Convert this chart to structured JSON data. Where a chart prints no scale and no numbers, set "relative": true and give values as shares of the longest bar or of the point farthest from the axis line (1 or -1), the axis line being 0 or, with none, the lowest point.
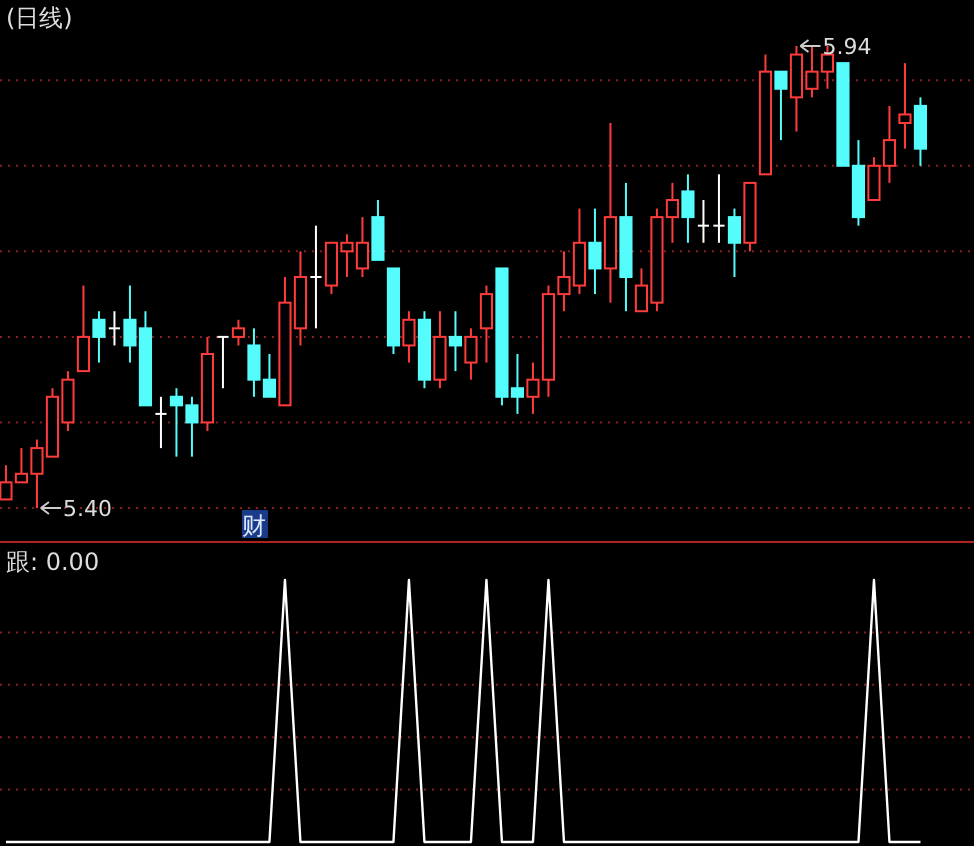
{
  "chart_data": [
    {
      "type": "candlestick",
      "title": "(日线)",
      "categories": [
        null,
        null,
        null,
        null,
        null,
        null,
        null,
        null,
        null,
        null,
        null,
        null,
        null,
        null,
        null,
        null,
        null,
        null,
        null,
        null,
        null,
        null,
        null,
        null,
        null,
        null,
        null,
        null,
        null,
        null,
        null,
        null,
        null,
        null,
        null,
        null,
        null,
        null,
        null,
        null,
        null,
        null,
        null,
        null,
        null,
        null,
        null,
        null,
        null,
        null,
        null,
        null,
        null,
        null,
        null,
        null,
        null,
        null,
        null,
        null
      ],
      "ohlc": [
        [
          5.41,
          5.45,
          5.41,
          5.43
        ],
        [
          5.43,
          5.47,
          5.43,
          5.44
        ],
        [
          5.44,
          5.48,
          5.4,
          5.47
        ],
        [
          5.46,
          5.54,
          5.46,
          5.53
        ],
        [
          5.5,
          5.56,
          5.49,
          5.55
        ],
        [
          5.56,
          5.66,
          5.56,
          5.6
        ],
        [
          5.62,
          5.63,
          5.57,
          5.6
        ],
        [
          5.61,
          5.63,
          5.59,
          5.61
        ],
        [
          5.62,
          5.66,
          5.57,
          5.59
        ],
        [
          5.61,
          5.63,
          5.52,
          5.52
        ],
        [
          5.51,
          5.53,
          5.47,
          5.51
        ],
        [
          5.53,
          5.54,
          5.46,
          5.52
        ],
        [
          5.52,
          5.53,
          5.46,
          5.5
        ],
        [
          5.5,
          5.6,
          5.49,
          5.58
        ],
        [
          5.6,
          5.6,
          5.54,
          5.6
        ],
        [
          5.6,
          5.62,
          5.59,
          5.61
        ],
        [
          5.59,
          5.61,
          5.53,
          5.55
        ],
        [
          5.55,
          5.58,
          5.53,
          5.53
        ],
        [
          5.52,
          5.67,
          5.52,
          5.64
        ],
        [
          5.61,
          5.7,
          5.59,
          5.67
        ],
        [
          5.67,
          5.73,
          5.61,
          5.67
        ],
        [
          5.66,
          5.71,
          5.65,
          5.71
        ],
        [
          5.7,
          5.72,
          5.67,
          5.71
        ],
        [
          5.68,
          5.74,
          5.67,
          5.71
        ],
        [
          5.74,
          5.76,
          5.69,
          5.69
        ],
        [
          5.68,
          5.68,
          5.58,
          5.59
        ],
        [
          5.59,
          5.63,
          5.57,
          5.62
        ],
        [
          5.62,
          5.63,
          5.54,
          5.55
        ],
        [
          5.55,
          5.63,
          5.54,
          5.6
        ],
        [
          5.6,
          5.63,
          5.56,
          5.59
        ],
        [
          5.57,
          5.61,
          5.55,
          5.6
        ],
        [
          5.61,
          5.66,
          5.57,
          5.65
        ],
        [
          5.68,
          5.68,
          5.52,
          5.53
        ],
        [
          5.54,
          5.58,
          5.51,
          5.53
        ],
        [
          5.53,
          5.57,
          5.51,
          5.55
        ],
        [
          5.55,
          5.66,
          5.53,
          5.65
        ],
        [
          5.65,
          5.7,
          5.63,
          5.67
        ],
        [
          5.66,
          5.75,
          5.65,
          5.71
        ],
        [
          5.71,
          5.75,
          5.65,
          5.68
        ],
        [
          5.68,
          5.85,
          5.64,
          5.74
        ],
        [
          5.74,
          5.78,
          5.63,
          5.67
        ],
        [
          5.63,
          5.68,
          5.63,
          5.66
        ],
        [
          5.64,
          5.75,
          5.63,
          5.74
        ],
        [
          5.74,
          5.78,
          5.71,
          5.76
        ],
        [
          5.77,
          5.79,
          5.71,
          5.74
        ],
        [
          5.73,
          5.76,
          5.71,
          5.73
        ],
        [
          5.73,
          5.79,
          5.71,
          5.73
        ],
        [
          5.74,
          5.75,
          5.67,
          5.71
        ],
        [
          5.71,
          5.78,
          5.7,
          5.78
        ],
        [
          5.79,
          5.93,
          5.79,
          5.91
        ],
        [
          5.91,
          5.91,
          5.83,
          5.89
        ],
        [
          5.88,
          5.94,
          5.84,
          5.93
        ],
        [
          5.89,
          5.94,
          5.88,
          5.91
        ],
        [
          5.91,
          5.94,
          5.89,
          5.93
        ],
        [
          5.92,
          5.92,
          5.8,
          5.8
        ],
        [
          5.8,
          5.83,
          5.73,
          5.74
        ],
        [
          5.76,
          5.81,
          5.76,
          5.8
        ],
        [
          5.8,
          5.87,
          5.78,
          5.83
        ],
        [
          5.85,
          5.92,
          5.82,
          5.86
        ],
        [
          5.87,
          5.88,
          5.8,
          5.82
        ]
      ],
      "colors": [
        "#ff3c3c",
        "#ff3c3c",
        "#ff3c3c",
        "#ff3c3c",
        "#ff3c3c",
        "#ff3c3c",
        "#54fcfc",
        "#ffffff",
        "#54fcfc",
        "#54fcfc",
        "#ffffff",
        "#54fcfc",
        "#54fcfc",
        "#ff3c3c",
        "#ffffff",
        "#ff3c3c",
        "#54fcfc",
        "#54fcfc",
        "#ff3c3c",
        "#ff3c3c",
        "#ffffff",
        "#ff3c3c",
        "#ff3c3c",
        "#ff3c3c",
        "#54fcfc",
        "#54fcfc",
        "#ff3c3c",
        "#54fcfc",
        "#ff3c3c",
        "#54fcfc",
        "#ff3c3c",
        "#ff3c3c",
        "#54fcfc",
        "#54fcfc",
        "#ff3c3c",
        "#ff3c3c",
        "#ff3c3c",
        "#ff3c3c",
        "#54fcfc",
        "#ff3c3c",
        "#54fcfc",
        "#ff3c3c",
        "#ff3c3c",
        "#ff3c3c",
        "#54fcfc",
        "#ffffff",
        "#ffffff",
        "#54fcfc",
        "#ff3c3c",
        "#ff3c3c",
        "#54fcfc",
        "#ff3c3c",
        "#ff3c3c",
        "#ff3c3c",
        "#54fcfc",
        "#54fcfc",
        "#ff3c3c",
        "#ff3c3c",
        "#ff3c3c",
        "#54fcfc"
      ],
      "yticks": [
        {
          "value": 5.4,
          "label": null
        },
        {
          "value": 5.5,
          "label": null
        },
        {
          "value": 5.6,
          "label": null
        },
        {
          "value": 5.7,
          "label": null
        },
        {
          "value": 5.8,
          "label": null
        },
        {
          "value": 5.9,
          "label": null
        }
      ],
      "grid": "y",
      "annotations": [
        "5.40",
        "5.94",
        "财"
      ]
    },
    {
      "type": "line",
      "title": "跟: 0.00",
      "relative": true,
      "color": "#ffffff",
      "ref_lines": [
        {
          "axis": "y",
          "value": 0.2,
          "color": "#8a1e1e",
          "line_style": "dotted"
        },
        {
          "axis": "y",
          "value": 0.4,
          "color": "#8a1e1e",
          "line_style": "dotted"
        },
        {
          "axis": "y",
          "value": 0.6,
          "color": "#8a1e1e",
          "line_style": "dotted"
        },
        {
          "axis": "y",
          "value": 0.8,
          "color": "#8a1e1e",
          "line_style": "dotted"
        }
      ],
      "categories": [
        null,
        null,
        null,
        null,
        null,
        null,
        null,
        null,
        null,
        null,
        null,
        null,
        null,
        null,
        null,
        null,
        null,
        null,
        null,
        null,
        null,
        null,
        null,
        null,
        null,
        null,
        null,
        null,
        null,
        null,
        null,
        null,
        null,
        null,
        null,
        null,
        null,
        null,
        null,
        null,
        null,
        null,
        null,
        null,
        null,
        null,
        null,
        null,
        null,
        null,
        null,
        null,
        null,
        null,
        null,
        null,
        null,
        null,
        null,
        null
      ],
      "values": [
        0,
        0,
        0,
        0,
        0,
        0,
        0,
        0,
        0,
        0,
        0,
        0,
        0,
        0,
        0,
        0,
        0,
        0,
        1,
        0,
        0,
        0,
        0,
        0,
        0,
        0,
        1,
        0,
        0,
        0,
        0,
        1,
        0,
        0,
        0,
        1,
        0,
        0,
        0,
        0,
        0,
        0,
        0,
        0,
        0,
        0,
        0,
        0,
        0,
        0,
        0,
        0,
        0,
        0,
        0,
        0,
        1,
        0,
        0,
        0
      ]
    }
  ]
}
